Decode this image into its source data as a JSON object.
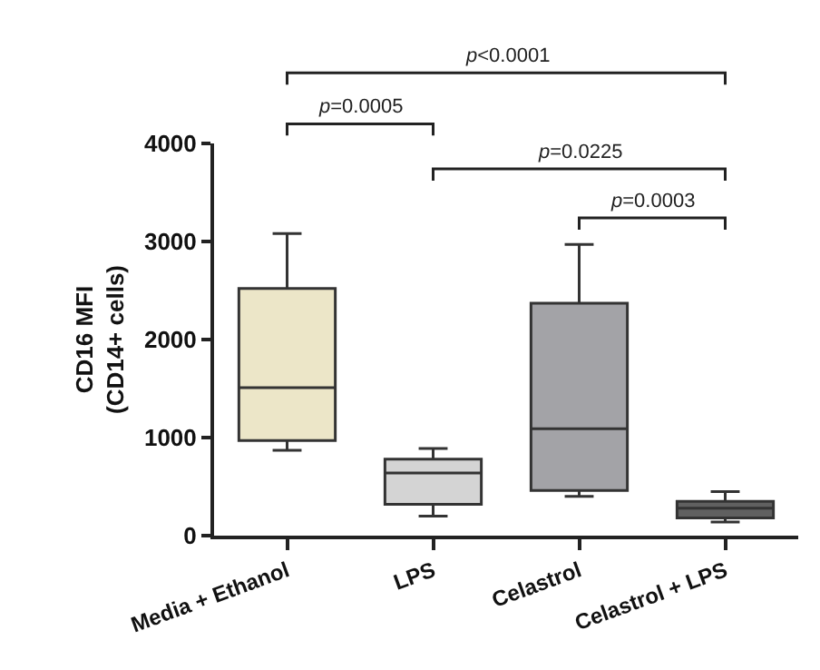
{
  "chart_data": {
    "type": "box",
    "ylabel": "CD16 MFI\n(CD14+ cells)",
    "categories": [
      "Media + Ethanol",
      "LPS",
      "Celastrol",
      "Celastrol + LPS"
    ],
    "boxes": [
      {
        "low": 870,
        "q1": 970,
        "median": 1510,
        "q3": 2520,
        "high": 3080
      },
      {
        "low": 200,
        "q1": 320,
        "median": 640,
        "q3": 780,
        "high": 890
      },
      {
        "low": 400,
        "q1": 460,
        "median": 1090,
        "q3": 2370,
        "high": 2970
      },
      {
        "low": 140,
        "q1": 180,
        "median": 280,
        "q3": 350,
        "high": 450
      }
    ],
    "colors": [
      "#ece6c8",
      "#d4d4d4",
      "#a3a3a7",
      "#606060"
    ],
    "ylim": [
      0,
      4000
    ],
    "yticks": [
      0,
      1000,
      2000,
      3000,
      4000
    ],
    "annotations": [
      "p<0.0001",
      "p=0.0005",
      "p=0.0225",
      "p=0.0003"
    ]
  }
}
